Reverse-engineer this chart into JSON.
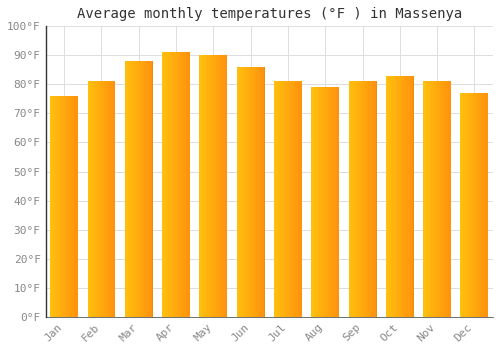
{
  "title": "Average monthly temperatures (°F ) in Massenya",
  "months": [
    "Jan",
    "Feb",
    "Mar",
    "Apr",
    "May",
    "Jun",
    "Jul",
    "Aug",
    "Sep",
    "Oct",
    "Nov",
    "Dec"
  ],
  "values": [
    76,
    81,
    88,
    91,
    90,
    86,
    81,
    79,
    81,
    83,
    81,
    77
  ],
  "bar_color_main": "#FFA500",
  "bar_color_left": "#FFCC33",
  "bar_color_right": "#E8900A",
  "ylim": [
    0,
    100
  ],
  "yticks": [
    0,
    10,
    20,
    30,
    40,
    50,
    60,
    70,
    80,
    90,
    100
  ],
  "ytick_labels": [
    "0°F",
    "10°F",
    "20°F",
    "30°F",
    "40°F",
    "50°F",
    "60°F",
    "70°F",
    "80°F",
    "90°F",
    "100°F"
  ],
  "background_color": "#FFFFFF",
  "grid_color": "#DDDDDD",
  "title_fontsize": 10,
  "tick_fontsize": 8,
  "font_family": "monospace",
  "tick_color": "#888888",
  "title_color": "#333333",
  "bar_width": 0.75,
  "left_spine_color": "#333333"
}
